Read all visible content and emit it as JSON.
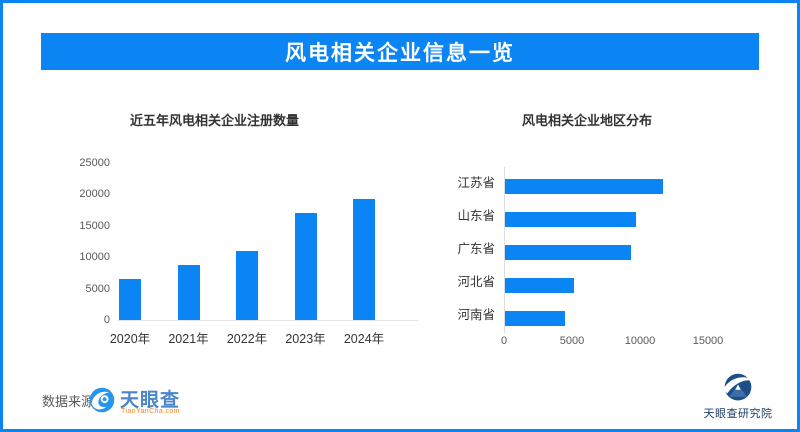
{
  "page": {
    "banner_title": "风电相关企业信息一览",
    "colors": {
      "accent": "#0a85f3",
      "navy": "#1d4e89",
      "tyc_blue": "#4a86c8",
      "tyc_orange": "#e8882d"
    },
    "footer": {
      "source_label": "数据来源：",
      "source_logo": {
        "name": "天眼查",
        "sub": "TianYanCha.com"
      },
      "institute": "天眼查研究院"
    }
  },
  "chart_data": [
    {
      "type": "bar",
      "title": "近五年风电相关企业注册数量",
      "categories": [
        "2020年",
        "2021年",
        "2022年",
        "2023年",
        "2024年"
      ],
      "values": [
        6500,
        8800,
        11000,
        17000,
        19200
      ],
      "xlabel": "",
      "ylabel": "",
      "ylim": [
        0,
        25000
      ],
      "yticks": [
        0,
        5000,
        10000,
        15000,
        20000,
        25000
      ],
      "grid": false,
      "legend": false,
      "bar_color": "#0a85f3"
    },
    {
      "type": "bar-horizontal",
      "title": "风电相关企业地区分布",
      "categories": [
        "江苏省",
        "山东省",
        "广东省",
        "河北省",
        "河南省"
      ],
      "values": [
        11600,
        9600,
        9300,
        5100,
        4400
      ],
      "xlabel": "",
      "ylabel": "",
      "xlim": [
        0,
        15000
      ],
      "xticks": [
        0,
        5000,
        10000,
        15000
      ],
      "grid": false,
      "legend": false,
      "bar_color": "#0a85f3"
    }
  ]
}
